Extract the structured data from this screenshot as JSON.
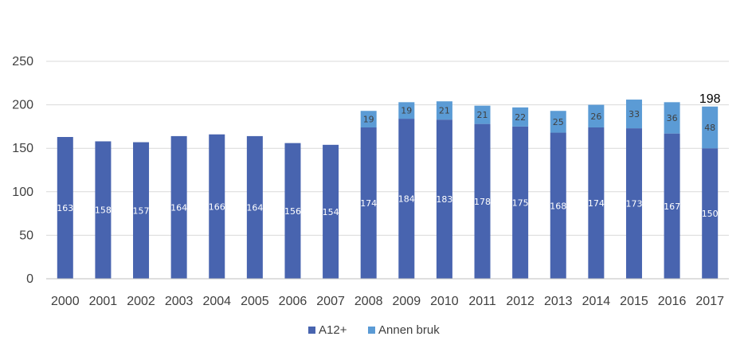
{
  "chart_data": {
    "type": "bar",
    "stacked": true,
    "categories": [
      "2000",
      "2001",
      "2002",
      "2003",
      "2004",
      "2005",
      "2006",
      "2007",
      "2008",
      "2009",
      "2010",
      "2011",
      "2012",
      "2013",
      "2014",
      "2015",
      "2016",
      "2017"
    ],
    "series": [
      {
        "name": "A12+",
        "color": "#4864AF",
        "values": [
          163,
          158,
          157,
          164,
          166,
          164,
          156,
          154,
          174,
          184,
          183,
          178,
          175,
          168,
          174,
          173,
          167,
          150
        ]
      },
      {
        "name": "Annen bruk",
        "color": "#5B9BD5",
        "values": [
          null,
          null,
          null,
          null,
          null,
          null,
          null,
          null,
          19,
          19,
          21,
          21,
          22,
          25,
          26,
          33,
          36,
          48
        ]
      }
    ],
    "total_labels": {
      "2017": 198
    },
    "ylim": [
      0,
      250
    ],
    "yticks": [
      0,
      50,
      100,
      150,
      200,
      250
    ],
    "grid": true,
    "legend": "bottom",
    "title": "",
    "xlabel": "",
    "ylabel": ""
  }
}
